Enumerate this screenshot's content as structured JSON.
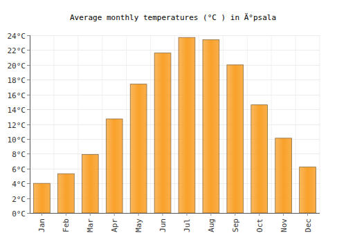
{
  "chart_data": {
    "type": "bar",
    "title": "Average monthly temperatures (°C ) in Ä°psala",
    "categories": [
      "Jan",
      "Feb",
      "Mar",
      "Apr",
      "May",
      "Jun",
      "Jul",
      "Aug",
      "Sep",
      "Oct",
      "Nov",
      "Dec"
    ],
    "values": [
      4.0,
      5.3,
      7.9,
      12.7,
      17.4,
      21.6,
      23.7,
      23.4,
      20.0,
      14.6,
      10.1,
      6.2
    ],
    "color": "#f9a12a",
    "ylim": [
      0,
      24
    ],
    "yticks": [
      {
        "value": 0,
        "label": "0°C"
      },
      {
        "value": 2,
        "label": "2°C"
      },
      {
        "value": 4,
        "label": "4°C"
      },
      {
        "value": 6,
        "label": "6°C"
      },
      {
        "value": 8,
        "label": "8°C"
      },
      {
        "value": 10,
        "label": "10°C"
      },
      {
        "value": 12,
        "label": "12°C"
      },
      {
        "value": 14,
        "label": "14°C"
      },
      {
        "value": 16,
        "label": "16°C"
      },
      {
        "value": 18,
        "label": "18°C"
      },
      {
        "value": 20,
        "label": "20°C"
      },
      {
        "value": 22,
        "label": "22°C"
      },
      {
        "value": 24,
        "label": "24°C"
      }
    ],
    "grid": true
  }
}
